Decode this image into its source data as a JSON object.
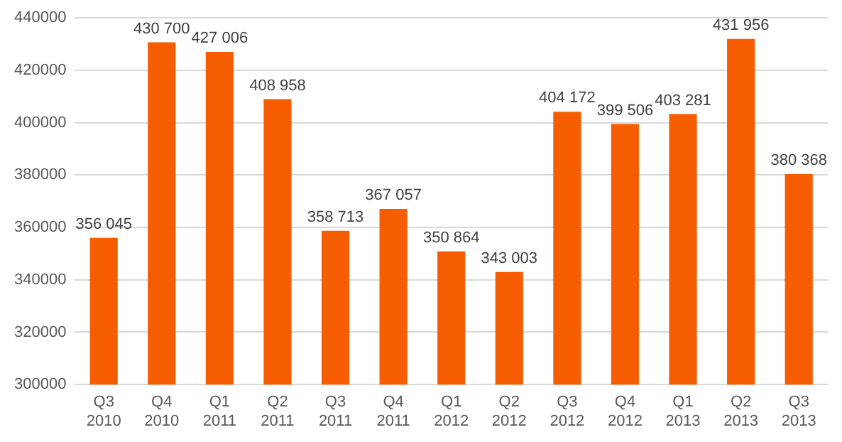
{
  "chart_data": {
    "type": "bar",
    "categories": [
      "Q3 2010",
      "Q4 2010",
      "Q1 2011",
      "Q2 2011",
      "Q3 2011",
      "Q4 2011",
      "Q1 2012",
      "Q2 2012",
      "Q3 2012",
      "Q4 2012",
      "Q1 2013",
      "Q2 2013",
      "Q3 2013"
    ],
    "values": [
      356045,
      430700,
      427006,
      408958,
      358713,
      367057,
      350864,
      343003,
      404172,
      399506,
      403281,
      431956,
      380368
    ],
    "value_labels": [
      "356 045",
      "430 700",
      "427 006",
      "408 958",
      "358 713",
      "367 057",
      "350 864",
      "343 003",
      "404 172",
      "399 506",
      "403 281",
      "431 956",
      "380 368"
    ],
    "color": "#f65d00",
    "ylim": [
      300000,
      440000
    ],
    "yticks": [
      300000,
      320000,
      340000,
      360000,
      380000,
      400000,
      420000,
      440000
    ],
    "grid": "y"
  }
}
